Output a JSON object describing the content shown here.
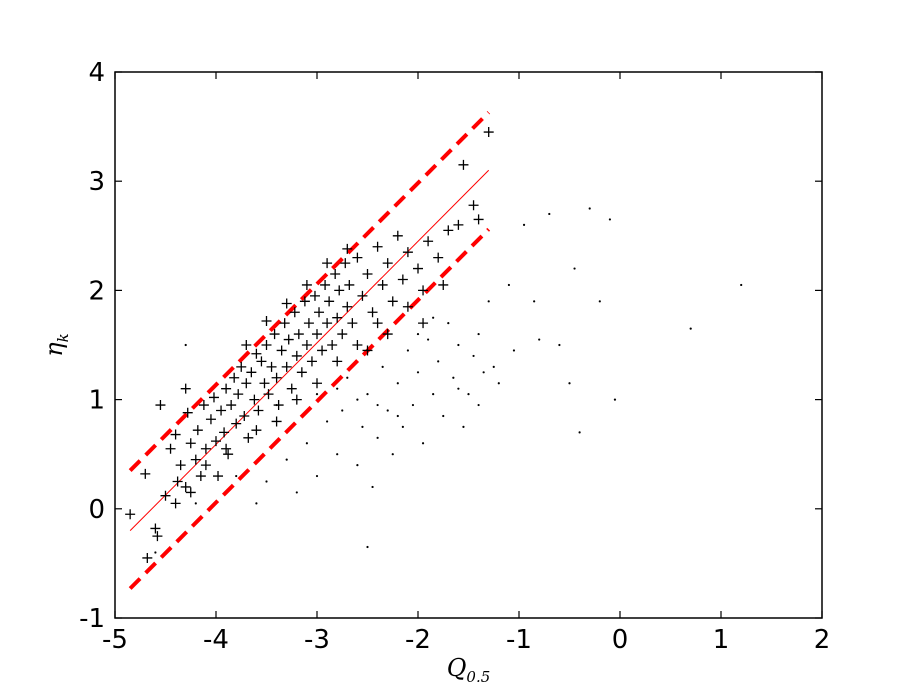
{
  "chart_data": {
    "type": "scatter",
    "title": "",
    "xlabel": "Q_0.5",
    "ylabel": "η_k",
    "xlim": [
      -5,
      2
    ],
    "ylim": [
      -1,
      4
    ],
    "xticks": [
      -5,
      -4,
      -3,
      -2,
      -1,
      0,
      1,
      2
    ],
    "yticks": [
      -1,
      0,
      1,
      2,
      3,
      4
    ],
    "grid": false,
    "series": [
      {
        "marker": "plus",
        "color": "#000000",
        "points": [
          [
            -4.85,
            -0.05
          ],
          [
            -4.7,
            0.32
          ],
          [
            -4.68,
            -0.45
          ],
          [
            -4.6,
            -0.18
          ],
          [
            -4.58,
            -0.25
          ],
          [
            -4.5,
            0.12
          ],
          [
            -4.45,
            0.55
          ],
          [
            -4.4,
            0.68
          ],
          [
            -4.38,
            0.25
          ],
          [
            -4.35,
            0.4
          ],
          [
            -4.3,
            0.2
          ],
          [
            -4.28,
            0.88
          ],
          [
            -4.25,
            0.6
          ],
          [
            -4.2,
            0.45
          ],
          [
            -4.18,
            0.72
          ],
          [
            -4.15,
            0.3
          ],
          [
            -4.12,
            0.95
          ],
          [
            -4.1,
            0.55
          ],
          [
            -4.05,
            0.82
          ],
          [
            -4.02,
            1.02
          ],
          [
            -4.0,
            0.62
          ],
          [
            -3.98,
            0.3
          ],
          [
            -3.95,
            0.9
          ],
          [
            -3.92,
            0.7
          ],
          [
            -3.9,
            1.1
          ],
          [
            -3.88,
            0.5
          ],
          [
            -3.85,
            0.95
          ],
          [
            -3.82,
            1.2
          ],
          [
            -3.8,
            0.78
          ],
          [
            -3.78,
            1.05
          ],
          [
            -3.75,
            1.3
          ],
          [
            -3.72,
            0.85
          ],
          [
            -3.7,
            1.15
          ],
          [
            -3.68,
            0.65
          ],
          [
            -3.65,
            1.25
          ],
          [
            -3.62,
            1.0
          ],
          [
            -3.6,
            1.42
          ],
          [
            -3.58,
            0.9
          ],
          [
            -3.55,
            1.35
          ],
          [
            -3.52,
            1.15
          ],
          [
            -3.5,
            1.5
          ],
          [
            -3.48,
            1.05
          ],
          [
            -3.45,
            1.3
          ],
          [
            -3.42,
            1.6
          ],
          [
            -3.4,
            1.2
          ],
          [
            -3.38,
            0.95
          ],
          [
            -3.35,
            1.45
          ],
          [
            -3.32,
            1.7
          ],
          [
            -3.3,
            1.3
          ],
          [
            -3.28,
            1.55
          ],
          [
            -3.25,
            1.1
          ],
          [
            -3.22,
            1.8
          ],
          [
            -3.2,
            1.4
          ],
          [
            -3.18,
            1.6
          ],
          [
            -3.15,
            1.25
          ],
          [
            -3.12,
            1.9
          ],
          [
            -3.1,
            1.5
          ],
          [
            -3.08,
            1.7
          ],
          [
            -3.05,
            1.35
          ],
          [
            -3.02,
            1.95
          ],
          [
            -3.0,
            1.6
          ],
          [
            -2.98,
            1.8
          ],
          [
            -2.95,
            1.45
          ],
          [
            -2.92,
            2.05
          ],
          [
            -2.9,
            1.7
          ],
          [
            -2.88,
            1.9
          ],
          [
            -2.85,
            1.5
          ],
          [
            -2.82,
            2.15
          ],
          [
            -2.8,
            1.75
          ],
          [
            -2.78,
            2.0
          ],
          [
            -2.75,
            1.6
          ],
          [
            -2.72,
            2.25
          ],
          [
            -2.7,
            1.85
          ],
          [
            -2.68,
            2.05
          ],
          [
            -2.65,
            1.7
          ],
          [
            -2.6,
            2.3
          ],
          [
            -2.55,
            1.95
          ],
          [
            -2.5,
            2.15
          ],
          [
            -2.45,
            1.8
          ],
          [
            -2.4,
            2.4
          ],
          [
            -2.35,
            2.05
          ],
          [
            -2.3,
            2.25
          ],
          [
            -2.25,
            1.9
          ],
          [
            -2.2,
            2.5
          ],
          [
            -2.15,
            2.1
          ],
          [
            -2.1,
            2.35
          ],
          [
            -2.0,
            2.2
          ],
          [
            -1.95,
            2.0
          ],
          [
            -1.9,
            2.45
          ],
          [
            -1.8,
            2.3
          ],
          [
            -1.75,
            2.05
          ],
          [
            -1.7,
            2.55
          ],
          [
            -1.6,
            2.6
          ],
          [
            -1.55,
            3.15
          ],
          [
            -1.45,
            2.78
          ],
          [
            -1.4,
            2.65
          ],
          [
            -1.3,
            3.45
          ],
          [
            -3.6,
            0.72
          ],
          [
            -3.4,
            0.8
          ],
          [
            -3.2,
            1.0
          ],
          [
            -3.0,
            1.15
          ],
          [
            -2.8,
            1.35
          ],
          [
            -2.6,
            1.5
          ],
          [
            -2.4,
            1.7
          ],
          [
            -3.7,
            1.5
          ],
          [
            -3.5,
            1.72
          ],
          [
            -3.3,
            1.88
          ],
          [
            -3.1,
            2.05
          ],
          [
            -2.9,
            2.25
          ],
          [
            -2.7,
            2.38
          ],
          [
            -4.4,
            0.05
          ],
          [
            -4.25,
            0.15
          ],
          [
            -4.1,
            0.4
          ],
          [
            -3.9,
            0.55
          ],
          [
            -2.5,
            1.45
          ],
          [
            -2.3,
            1.6
          ],
          [
            -2.1,
            1.85
          ],
          [
            -1.95,
            1.7
          ],
          [
            -4.55,
            0.95
          ],
          [
            -4.3,
            1.1
          ]
        ]
      },
      {
        "marker": "dot",
        "color": "#000000",
        "points": [
          [
            -4.6,
            -0.4
          ],
          [
            -4.3,
            1.5
          ],
          [
            -4.2,
            0.05
          ],
          [
            -3.8,
            0.3
          ],
          [
            -3.6,
            0.05
          ],
          [
            -3.5,
            0.25
          ],
          [
            -3.3,
            0.45
          ],
          [
            -3.2,
            0.15
          ],
          [
            -3.1,
            0.6
          ],
          [
            -3.0,
            0.3
          ],
          [
            -2.9,
            0.8
          ],
          [
            -2.8,
            0.5
          ],
          [
            -2.75,
            0.9
          ],
          [
            -2.7,
            1.2
          ],
          [
            -2.6,
            0.4
          ],
          [
            -2.55,
            0.75
          ],
          [
            -2.5,
            1.05
          ],
          [
            -2.45,
            0.2
          ],
          [
            -2.4,
            0.65
          ],
          [
            -2.35,
            1.3
          ],
          [
            -2.3,
            0.9
          ],
          [
            -2.25,
            0.5
          ],
          [
            -2.2,
            1.15
          ],
          [
            -2.15,
            0.75
          ],
          [
            -2.1,
            1.45
          ],
          [
            -2.05,
            0.95
          ],
          [
            -2.0,
            1.25
          ],
          [
            -1.95,
            0.6
          ],
          [
            -1.9,
            1.55
          ],
          [
            -1.85,
            1.05
          ],
          [
            -1.8,
            1.35
          ],
          [
            -1.75,
            0.85
          ],
          [
            -1.7,
            1.7
          ],
          [
            -1.65,
            1.2
          ],
          [
            -1.6,
            1.5
          ],
          [
            -1.55,
            0.75
          ],
          [
            -1.5,
            1.05
          ],
          [
            -1.45,
            1.4
          ],
          [
            -1.4,
            1.6
          ],
          [
            -1.35,
            1.25
          ],
          [
            -1.3,
            1.9
          ],
          [
            -1.25,
            1.3
          ],
          [
            -1.2,
            1.15
          ],
          [
            -1.1,
            2.05
          ],
          [
            -1.05,
            1.45
          ],
          [
            -0.95,
            2.6
          ],
          [
            -0.85,
            1.9
          ],
          [
            -0.8,
            1.55
          ],
          [
            -0.7,
            2.7
          ],
          [
            -0.6,
            1.5
          ],
          [
            -0.5,
            1.15
          ],
          [
            -0.45,
            2.2
          ],
          [
            -0.4,
            0.7
          ],
          [
            -0.3,
            2.75
          ],
          [
            -0.2,
            1.9
          ],
          [
            -0.1,
            2.65
          ],
          [
            -0.05,
            1.0
          ],
          [
            0.7,
            1.65
          ],
          [
            1.2,
            2.05
          ],
          [
            -2.5,
            -0.35
          ],
          [
            -3.4,
            0.95
          ],
          [
            -3.0,
            1.05
          ],
          [
            -2.6,
            1.0
          ],
          [
            -2.2,
            0.85
          ],
          [
            -1.85,
            1.75
          ],
          [
            -2.8,
            1.1
          ],
          [
            -2.4,
            0.95
          ],
          [
            -2.0,
            1.6
          ],
          [
            -1.6,
            1.1
          ],
          [
            -1.4,
            0.95
          ]
        ]
      }
    ],
    "fit_line": {
      "style": "solid",
      "color": "#ff0000",
      "points": [
        [
          -4.85,
          -0.2
        ],
        [
          -1.3,
          3.1
        ]
      ]
    },
    "bounds": [
      {
        "style": "dashed",
        "color": "#ff0000",
        "points": [
          [
            -4.85,
            0.35
          ],
          [
            -1.3,
            3.63
          ]
        ]
      },
      {
        "style": "dashed",
        "color": "#ff0000",
        "points": [
          [
            -4.85,
            -0.73
          ],
          [
            -1.3,
            2.56
          ]
        ]
      }
    ]
  }
}
